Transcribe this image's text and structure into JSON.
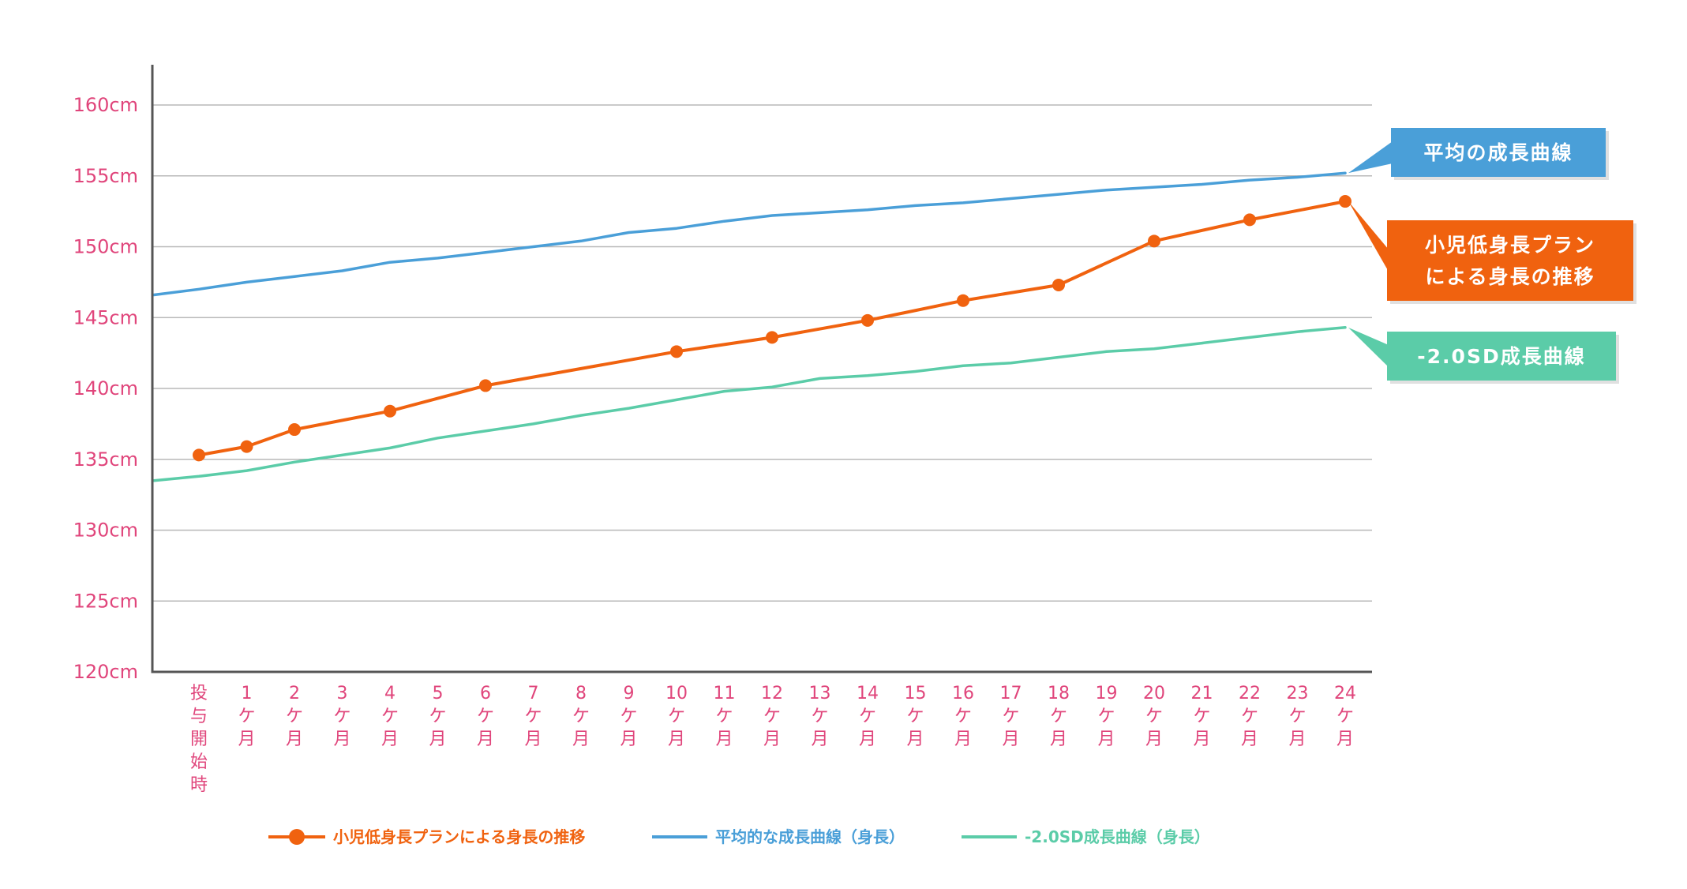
{
  "chart_data": {
    "type": "line",
    "categories": [
      "投与開始時",
      "1ケ月",
      "2ケ月",
      "3ケ月",
      "4ケ月",
      "5ケ月",
      "6ケ月",
      "7ケ月",
      "8ケ月",
      "9ケ月",
      "10ケ月",
      "11ケ月",
      "12ケ月",
      "13ケ月",
      "14ケ月",
      "15ケ月",
      "16ケ月",
      "17ケ月",
      "18ケ月",
      "19ケ月",
      "20ケ月",
      "21ケ月",
      "22ケ月",
      "23ケ月",
      "24ケ月"
    ],
    "category_labels": [
      [
        "投",
        "与",
        "開",
        "始",
        "時"
      ],
      [
        "1",
        "ケ",
        "月"
      ],
      [
        "2",
        "ケ",
        "月"
      ],
      [
        "3",
        "ケ",
        "月"
      ],
      [
        "4",
        "ケ",
        "月"
      ],
      [
        "5",
        "ケ",
        "月"
      ],
      [
        "6",
        "ケ",
        "月"
      ],
      [
        "7",
        "ケ",
        "月"
      ],
      [
        "8",
        "ケ",
        "月"
      ],
      [
        "9",
        "ケ",
        "月"
      ],
      [
        "10",
        "ケ",
        "月"
      ],
      [
        "11",
        "ケ",
        "月"
      ],
      [
        "12",
        "ケ",
        "月"
      ],
      [
        "13",
        "ケ",
        "月"
      ],
      [
        "14",
        "ケ",
        "月"
      ],
      [
        "15",
        "ケ",
        "月"
      ],
      [
        "16",
        "ケ",
        "月"
      ],
      [
        "17",
        "ケ",
        "月"
      ],
      [
        "18",
        "ケ",
        "月"
      ],
      [
        "19",
        "ケ",
        "月"
      ],
      [
        "20",
        "ケ",
        "月"
      ],
      [
        "21",
        "ケ",
        "月"
      ],
      [
        "22",
        "ケ",
        "月"
      ],
      [
        "23",
        "ケ",
        "月"
      ],
      [
        "24",
        "ケ",
        "月"
      ]
    ],
    "y_ticks": [
      "120cm",
      "125cm",
      "130cm",
      "135cm",
      "140cm",
      "145cm",
      "150cm",
      "155cm",
      "160cm"
    ],
    "ylim": [
      120,
      160
    ],
    "grid": true,
    "legend_position": "bottom",
    "series": [
      {
        "name": "小児低身長プランによる身長の推移",
        "color": "#f0620f",
        "markers": true,
        "points": [
          [
            0,
            135.3
          ],
          [
            1,
            135.9
          ],
          [
            2,
            137.1
          ],
          [
            4,
            138.4
          ],
          [
            6,
            140.2
          ],
          [
            10,
            142.6
          ],
          [
            12,
            143.6
          ],
          [
            14,
            144.8
          ],
          [
            16,
            146.2
          ],
          [
            18,
            147.3
          ],
          [
            20,
            150.4
          ],
          [
            22,
            151.9
          ],
          [
            24,
            153.2
          ]
        ]
      },
      {
        "name": "平均的な成長曲線（身長）",
        "color": "#4a9fd8",
        "markers": false,
        "extend_start": 146.6,
        "values": [
          147.0,
          147.5,
          147.9,
          148.3,
          148.9,
          149.2,
          149.6,
          150.0,
          150.4,
          151.0,
          151.3,
          151.8,
          152.2,
          152.4,
          152.6,
          152.9,
          153.1,
          153.4,
          153.7,
          154.0,
          154.2,
          154.4,
          154.7,
          154.9,
          155.2
        ]
      },
      {
        "name": "-2.0SD成長曲線（身長）",
        "color": "#5bcca8",
        "markers": false,
        "extend_start": 133.5,
        "values": [
          133.8,
          134.2,
          134.8,
          135.3,
          135.8,
          136.5,
          137.0,
          137.5,
          138.1,
          138.6,
          139.2,
          139.8,
          140.1,
          140.7,
          140.9,
          141.2,
          141.6,
          141.8,
          142.2,
          142.6,
          142.8,
          143.2,
          143.6,
          144.0,
          144.3
        ]
      }
    ],
    "callouts": [
      {
        "lines": [
          "平均の成長曲線"
        ],
        "color": "#4a9fd8",
        "series": 1
      },
      {
        "lines": [
          "小児低身長プラン",
          "による身長の推移"
        ],
        "color": "#f0620f",
        "series": 0
      },
      {
        "lines": [
          "-2.0SD成長曲線"
        ],
        "color": "#5bcca8",
        "series": 2
      }
    ]
  }
}
